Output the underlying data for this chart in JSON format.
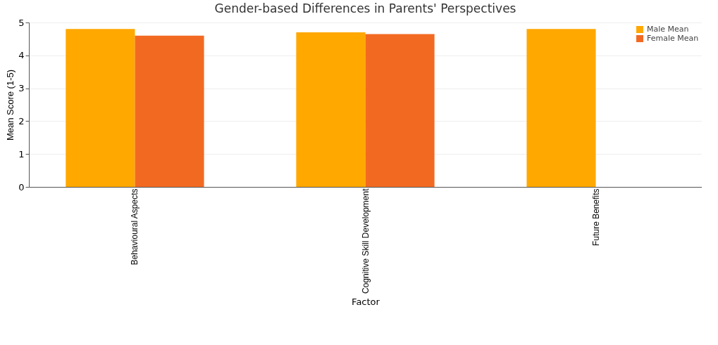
{
  "chart_data": {
    "type": "bar",
    "title": "Gender-based Differences in Parents' Perspectives",
    "xlabel": "Factor",
    "ylabel": "Mean Score (1-5)",
    "categories": [
      "Behavioural Aspects",
      "Cognitive Skill Development",
      "Future Benefits"
    ],
    "series": [
      {
        "name": "Male Mean",
        "color": "#ffa800",
        "values": [
          4.8,
          4.7,
          4.8
        ]
      },
      {
        "name": "Female Mean",
        "color": "#f26a22",
        "values": [
          4.6,
          4.65,
          null
        ]
      }
    ],
    "ylim": [
      0,
      5
    ],
    "yticks": [
      0,
      1,
      2,
      3,
      4,
      5
    ],
    "grid": "y",
    "legend": "top right"
  }
}
